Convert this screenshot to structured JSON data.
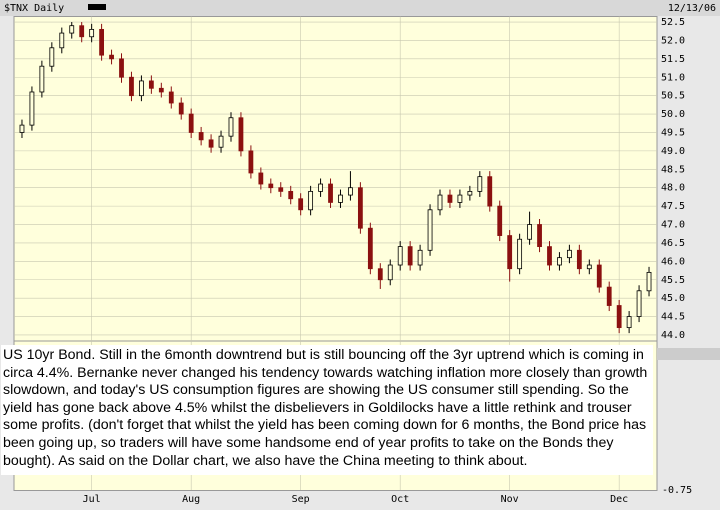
{
  "chart_data": {
    "type": "candlestick",
    "title": "$TNX Daily",
    "date": "12/13/06",
    "annotation": "US 10yr Bond. Still in the 6month downtrend but is still bouncing off the 3yr uptrend which is coming in circa 4.4%. Bernanke never changed his tendency towards watching inflation more closely than growth slowdown, and today's US consumption figures are showing the US consumer still spending. So the yield has gone back above 4.5% whilst the disbelievers in Goldilocks have a little rethink and trouser some profits. (don't forget that whilst the yield has been coming down for 6 months, the Bond price has been going up, so traders will have some handsome end of year profits to take on the Bonds they bought). As said on the Dollar chart, we also have the China meeting to think about.",
    "lower_panel_label": "-0.75",
    "categories": [
      null,
      null,
      null,
      null,
      null,
      null,
      null,
      "Jul",
      null,
      null,
      null,
      null,
      null,
      null,
      null,
      null,
      null,
      "Aug",
      null,
      null,
      null,
      null,
      null,
      null,
      null,
      null,
      null,
      null,
      "Sep",
      null,
      null,
      null,
      null,
      null,
      null,
      null,
      null,
      null,
      "Oct",
      null,
      null,
      null,
      null,
      null,
      null,
      null,
      null,
      null,
      null,
      "Nov",
      null,
      null,
      null,
      null,
      null,
      null,
      null,
      null,
      null,
      null,
      "Dec",
      null,
      null,
      null
    ],
    "open": [
      49.5,
      49.7,
      50.6,
      51.3,
      51.8,
      52.2,
      52.4,
      52.1,
      52.3,
      51.6,
      51.5,
      51.0,
      50.5,
      50.9,
      50.7,
      50.6,
      50.3,
      50.0,
      49.5,
      49.3,
      49.1,
      49.4,
      49.9,
      49.0,
      48.4,
      48.1,
      48.0,
      47.9,
      47.7,
      47.4,
      47.9,
      48.1,
      47.6,
      47.8,
      48.0,
      46.9,
      45.8,
      45.5,
      45.9,
      46.4,
      45.9,
      46.3,
      47.4,
      47.8,
      47.6,
      47.8,
      47.9,
      48.3,
      47.5,
      46.7,
      45.8,
      46.6,
      47.0,
      46.4,
      45.9,
      46.1,
      46.3,
      45.8,
      45.9,
      45.3,
      44.8,
      44.2,
      44.5,
      45.2
    ],
    "high": [
      49.85,
      50.75,
      51.45,
      51.95,
      52.35,
      52.5,
      52.5,
      52.45,
      52.45,
      51.75,
      51.65,
      51.15,
      51.05,
      51.05,
      50.85,
      50.75,
      50.45,
      50.15,
      49.65,
      49.45,
      49.55,
      50.05,
      50.05,
      49.15,
      48.55,
      48.25,
      48.15,
      48.05,
      47.85,
      48.05,
      48.25,
      48.25,
      47.95,
      48.45,
      48.15,
      47.05,
      45.95,
      46.05,
      46.55,
      46.55,
      46.45,
      47.55,
      47.95,
      47.95,
      47.95,
      48.05,
      48.45,
      48.45,
      47.65,
      46.85,
      46.75,
      47.35,
      47.15,
      46.55,
      46.25,
      46.45,
      46.45,
      46.05,
      46.05,
      45.45,
      44.95,
      44.65,
      45.35,
      45.85
    ],
    "low": [
      49.35,
      49.55,
      50.45,
      51.15,
      51.65,
      52.05,
      51.95,
      51.95,
      51.45,
      51.35,
      50.85,
      50.35,
      50.35,
      50.55,
      50.45,
      50.15,
      49.85,
      49.35,
      49.15,
      48.95,
      48.95,
      49.25,
      48.85,
      48.25,
      47.95,
      47.85,
      47.75,
      47.55,
      47.25,
      47.25,
      47.75,
      47.45,
      47.45,
      47.65,
      46.75,
      45.65,
      45.25,
      45.35,
      45.75,
      45.75,
      45.75,
      46.15,
      47.25,
      47.45,
      47.45,
      47.65,
      47.75,
      47.35,
      46.55,
      45.45,
      45.65,
      46.45,
      46.25,
      45.75,
      45.75,
      45.95,
      45.65,
      45.65,
      45.15,
      44.65,
      44.05,
      44.05,
      44.35,
      45.05
    ],
    "close": [
      49.7,
      50.6,
      51.3,
      51.8,
      52.2,
      52.4,
      52.1,
      52.3,
      51.6,
      51.5,
      51.0,
      50.5,
      50.9,
      50.7,
      50.6,
      50.3,
      50.0,
      49.5,
      49.3,
      49.1,
      49.4,
      49.9,
      49.0,
      48.4,
      48.1,
      48.0,
      47.9,
      47.7,
      47.4,
      47.9,
      48.1,
      47.6,
      47.8,
      48.0,
      46.9,
      45.8,
      45.5,
      45.9,
      46.4,
      45.9,
      46.3,
      47.4,
      47.8,
      47.6,
      47.8,
      47.9,
      48.3,
      47.5,
      46.7,
      45.8,
      46.6,
      47.0,
      46.4,
      45.9,
      46.1,
      46.3,
      45.8,
      45.9,
      45.3,
      44.8,
      44.2,
      44.5,
      45.2,
      45.7
    ],
    "up_color": "#000000",
    "down_color": "#8b1010",
    "ylim": [
      43.85,
      52.65
    ],
    "yticks": [
      {
        "value": 44,
        "label": "44.0"
      },
      44.5,
      {
        "value": 45,
        "label": "45.0"
      },
      45.5,
      {
        "value": 46,
        "label": "46.0"
      },
      46.5,
      {
        "value": 47,
        "label": "47.0"
      },
      47.5,
      {
        "value": 48,
        "label": "48.0"
      },
      48.5,
      {
        "value": 49,
        "label": "49.0"
      },
      49.5,
      {
        "value": 50,
        "label": "50.0"
      },
      50.5,
      {
        "value": 51,
        "label": "51.0"
      },
      51.5,
      {
        "value": 52,
        "label": "52.0"
      },
      52.5
    ],
    "grid": true
  }
}
